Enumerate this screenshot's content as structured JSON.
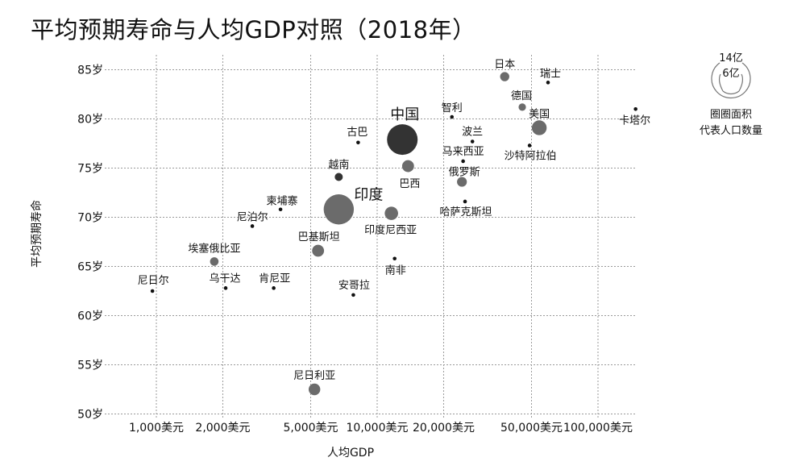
{
  "title": "平均预期寿命与人均GDP对照（2018年）",
  "chart_data": {
    "type": "scatter",
    "subtype": "bubble",
    "title": "平均预期寿命与人均GDP对照（2018年）",
    "xlabel": "人均GDP",
    "ylabel": "平均预期寿命",
    "x_scale": "log",
    "xlim": [
      600,
      180000
    ],
    "ylim": [
      50,
      85
    ],
    "x_ticks": [
      1000,
      2000,
      5000,
      10000,
      20000,
      50000,
      100000
    ],
    "x_tick_labels": [
      "1,000美元",
      "2,000美元",
      "5,000美元",
      "10,000美元",
      "20,000美元",
      "50,000美元",
      "100,000美元"
    ],
    "y_ticks": [
      50,
      55,
      60,
      65,
      70,
      75,
      80,
      85
    ],
    "y_tick_labels": [
      "50岁",
      "55岁",
      "60岁",
      "65岁",
      "70岁",
      "75岁",
      "80岁",
      "85岁"
    ],
    "grid": true,
    "size_legend": {
      "labels": [
        "14亿",
        "6亿"
      ],
      "values_yi": [
        14,
        6
      ],
      "caption": [
        "圈圈面积",
        "代表人口数量"
      ],
      "placement": "right"
    },
    "colors": {
      "bubble": "#6b6b6b",
      "dark_bubble": "#333333",
      "dot": "#111111",
      "grid": "#9a9a9a"
    },
    "points": [
      {
        "name": "日本",
        "gdp": 37800,
        "life": 84.3,
        "pop_yi": 1.27
      },
      {
        "name": "瑞士",
        "gdp": 59400,
        "life": 83.7,
        "pop_yi": 0.09
      },
      {
        "name": "德国",
        "gdp": 45400,
        "life": 81.2,
        "pop_yi": 0.83
      },
      {
        "name": "美国",
        "gdp": 54200,
        "life": 79.1,
        "pop_yi": 3.3
      },
      {
        "name": "智利",
        "gdp": 21800,
        "life": 80.2,
        "pop_yi": 0.19
      },
      {
        "name": "卡塔尔",
        "gdp": 148000,
        "life": 81.0,
        "pop_yi": 0.03
      },
      {
        "name": "中国",
        "gdp": 13000,
        "life": 77.9,
        "pop_yi": 14
      },
      {
        "name": "古巴",
        "gdp": 8200,
        "life": 77.6,
        "pop_yi": 0.11
      },
      {
        "name": "波兰",
        "gdp": 27000,
        "life": 77.7,
        "pop_yi": 0.38
      },
      {
        "name": "马来西亚",
        "gdp": 24500,
        "life": 75.7,
        "pop_yi": 0.32
      },
      {
        "name": "沙特阿拉伯",
        "gdp": 49000,
        "life": 77.3,
        "pop_yi": 0.34
      },
      {
        "name": "越南",
        "gdp": 6700,
        "life": 74.1,
        "pop_yi": 0.96
      },
      {
        "name": "巴西",
        "gdp": 13800,
        "life": 75.2,
        "pop_yi": 2.1
      },
      {
        "name": "俄罗斯",
        "gdp": 24200,
        "life": 73.6,
        "pop_yi": 1.45
      },
      {
        "name": "印度",
        "gdp": 6700,
        "life": 70.8,
        "pop_yi": 13.5
      },
      {
        "name": "柬埔寨",
        "gdp": 3650,
        "life": 70.8,
        "pop_yi": 0.16
      },
      {
        "name": "尼泊尔",
        "gdp": 2720,
        "life": 69.1,
        "pop_yi": 0.28
      },
      {
        "name": "哈萨克斯坦",
        "gdp": 25000,
        "life": 71.6,
        "pop_yi": 0.18
      },
      {
        "name": "印度尼西亚",
        "gdp": 11600,
        "life": 70.4,
        "pop_yi": 2.7
      },
      {
        "name": "巴基斯坦",
        "gdp": 5400,
        "life": 66.6,
        "pop_yi": 2.1
      },
      {
        "name": "埃塞俄比亚",
        "gdp": 1830,
        "life": 65.5,
        "pop_yi": 1.1
      },
      {
        "name": "南非",
        "gdp": 12000,
        "life": 65.8,
        "pop_yi": 0.58
      },
      {
        "name": "尼日尔",
        "gdp": 960,
        "life": 62.5,
        "pop_yi": 0.22
      },
      {
        "name": "乌干达",
        "gdp": 2060,
        "life": 62.8,
        "pop_yi": 0.43
      },
      {
        "name": "肯尼亚",
        "gdp": 3400,
        "life": 62.8,
        "pop_yi": 0.51
      },
      {
        "name": "安哥拉",
        "gdp": 7800,
        "life": 62.1,
        "pop_yi": 0.31
      },
      {
        "name": "尼日利亚",
        "gdp": 5200,
        "life": 52.5,
        "pop_yi": 2.0
      }
    ]
  }
}
